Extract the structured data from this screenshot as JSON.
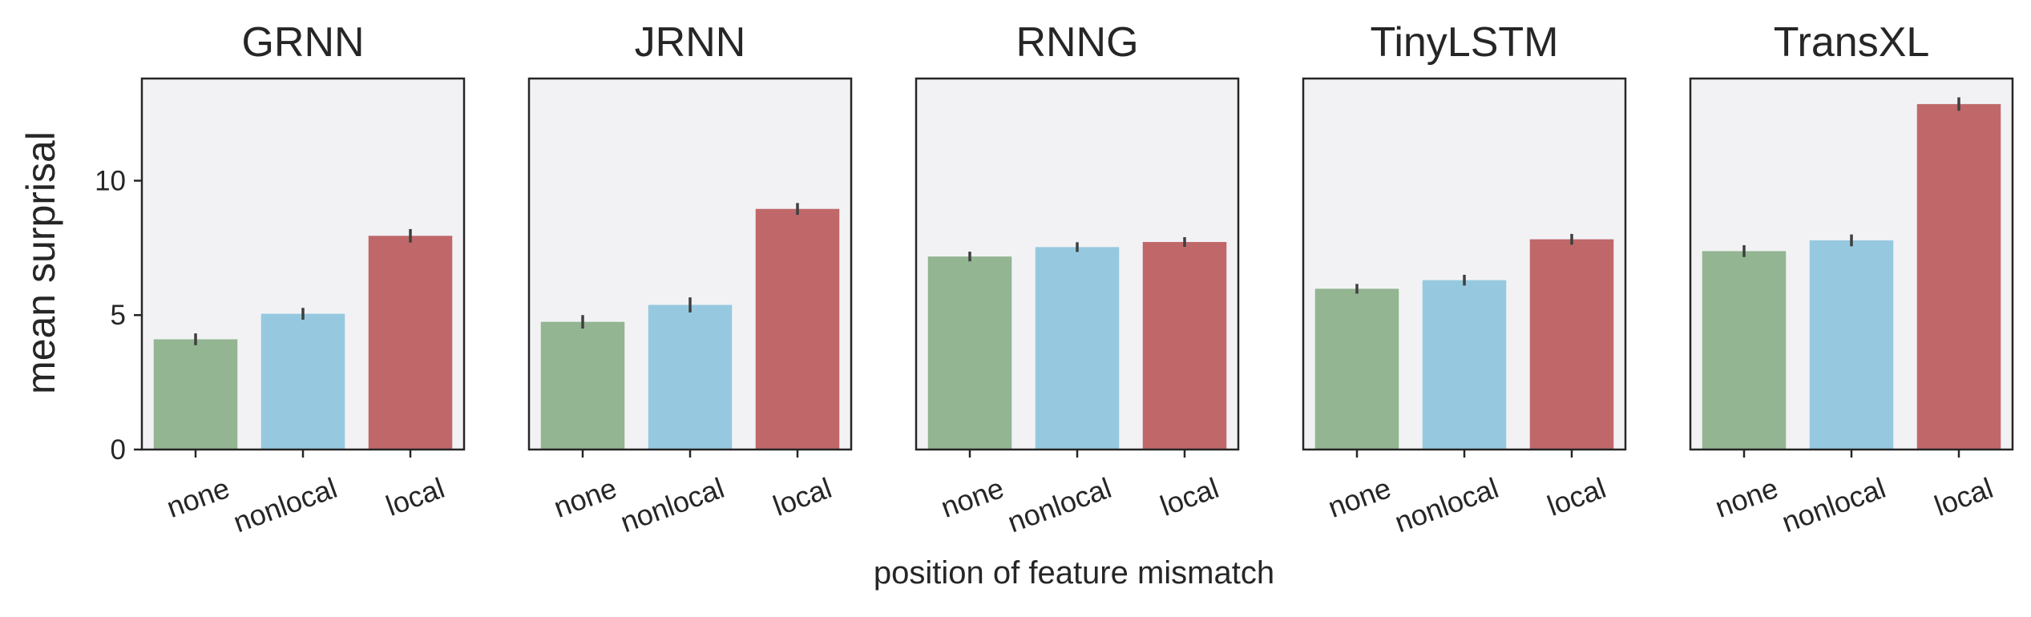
{
  "chart_data": {
    "type": "bar",
    "xlabel": "position of feature mismatch",
    "ylabel": "mean surprisal",
    "categories": [
      "none",
      "nonlocal",
      "local"
    ],
    "ylim": [
      0,
      13.8
    ],
    "yticks": [
      0,
      5,
      10
    ],
    "colors": {
      "none": "#93b592",
      "nonlocal": "#96c9df",
      "local": "#c06869"
    },
    "panel_background": "#f2f2f5",
    "panels": [
      {
        "title": "GRNN",
        "values": [
          4.1,
          5.05,
          7.95
        ],
        "errors": [
          0.22,
          0.22,
          0.25
        ]
      },
      {
        "title": "JRNN",
        "values": [
          4.75,
          5.38,
          8.95
        ],
        "errors": [
          0.25,
          0.28,
          0.22
        ]
      },
      {
        "title": "RNNG",
        "values": [
          7.18,
          7.53,
          7.72
        ],
        "errors": [
          0.18,
          0.18,
          0.18
        ]
      },
      {
        "title": "TinyLSTM",
        "values": [
          5.98,
          6.3,
          7.82
        ],
        "errors": [
          0.18,
          0.2,
          0.2
        ]
      },
      {
        "title": "TransXL",
        "values": [
          7.38,
          7.78,
          12.85
        ],
        "errors": [
          0.22,
          0.22,
          0.25
        ]
      }
    ]
  }
}
